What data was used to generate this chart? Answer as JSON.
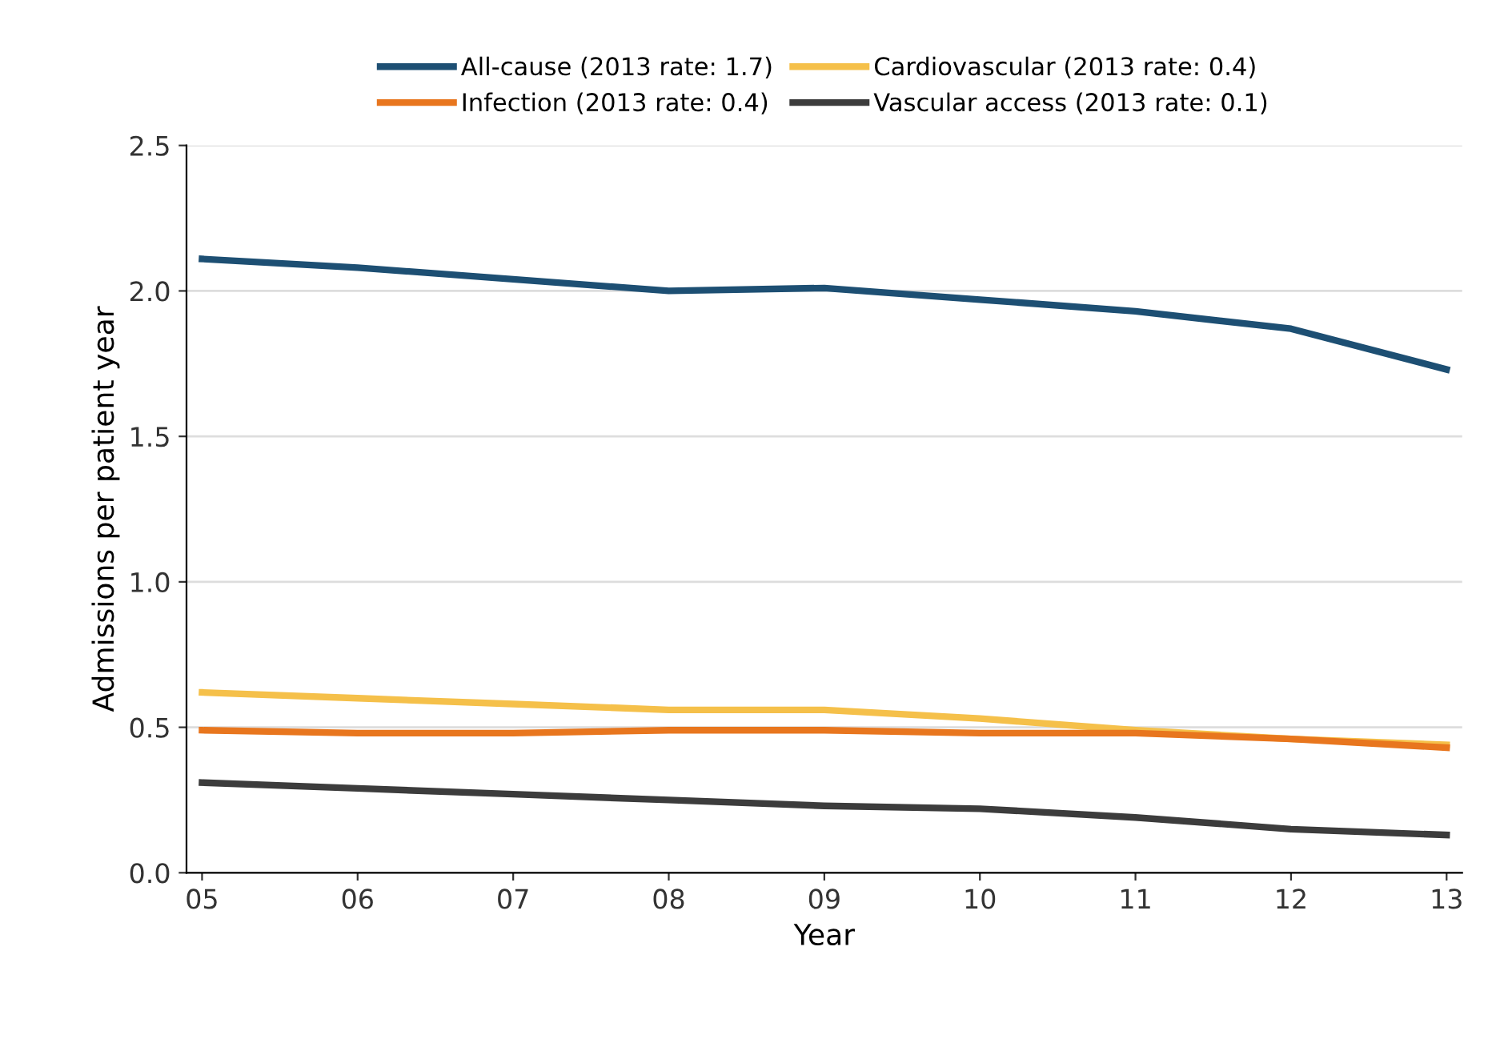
{
  "chart_data": {
    "type": "line",
    "xlabel": "Year",
    "ylabel": "Admissions per patient year",
    "categories": [
      "05",
      "06",
      "07",
      "08",
      "09",
      "10",
      "11",
      "12",
      "13"
    ],
    "series": [
      {
        "name": "All-cause (2013 rate: 1.7)",
        "color": "#1d4f73",
        "values": [
          2.11,
          2.08,
          2.04,
          2.0,
          2.01,
          1.97,
          1.93,
          1.87,
          1.73
        ]
      },
      {
        "name": "Cardiovascular (2013 rate: 0.4)",
        "color": "#f5c04a",
        "values": [
          0.62,
          0.6,
          0.58,
          0.56,
          0.56,
          0.53,
          0.49,
          0.46,
          0.44
        ]
      },
      {
        "name": "Infection (2013 rate: 0.4)",
        "color": "#e8761e",
        "values": [
          0.49,
          0.48,
          0.48,
          0.49,
          0.49,
          0.48,
          0.48,
          0.46,
          0.43
        ]
      },
      {
        "name": "Vascular access (2013 rate: 0.1)",
        "color": "#3c3c3c",
        "values": [
          0.31,
          0.29,
          0.27,
          0.25,
          0.23,
          0.22,
          0.19,
          0.15,
          0.13
        ]
      }
    ],
    "ylim": [
      0,
      2.5
    ],
    "yticks": [
      {
        "value": 0,
        "label": "0.0"
      },
      {
        "value": 0.5,
        "label": "0.5"
      },
      {
        "value": 1,
        "label": "1.0"
      },
      {
        "value": 1.5,
        "label": "1.5"
      },
      {
        "value": 2,
        "label": "2.0"
      },
      {
        "value": 2.5,
        "label": "2.5"
      }
    ],
    "grid": "y",
    "legend": "top",
    "marker": "none",
    "line_style": "solid"
  }
}
